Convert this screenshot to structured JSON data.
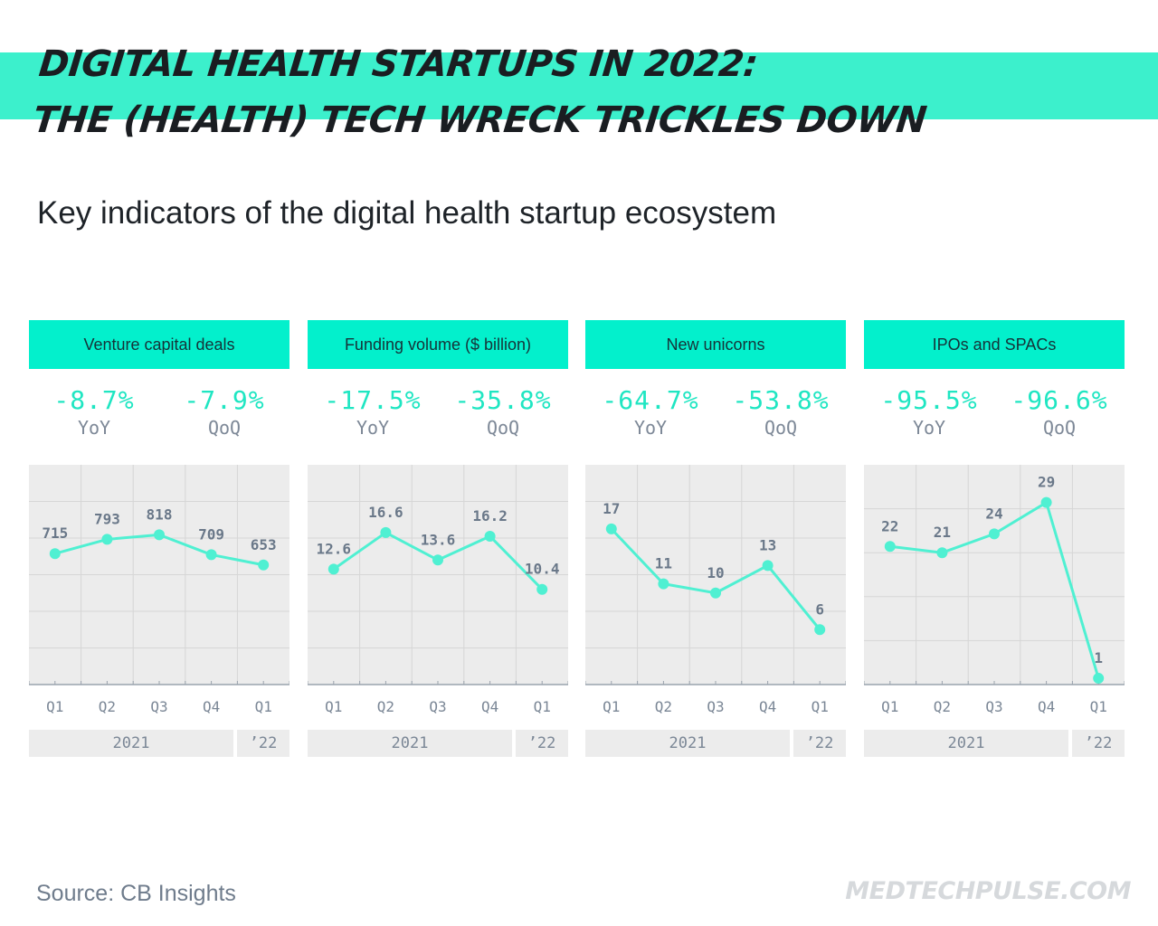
{
  "header": {
    "title_line1": "DIGITAL HEALTH STARTUPS IN 2022:",
    "title_line2": "THE (HEALTH) TECH WRECK TRICKLES DOWN",
    "subtitle": "Key indicators of the digital health startup ecosystem",
    "accent_color": "#3cf0cc"
  },
  "footer": {
    "source": "Source: CB Insights",
    "brand": "MEDTECHPULSE.COM"
  },
  "panels": [
    {
      "title": "Venture capital deals",
      "yoy_value": "-8.7%",
      "yoy_label": "YoY",
      "qoq_value": "-7.9%",
      "qoq_label": "QoQ",
      "year_label": "2021",
      "year2_label": "’22"
    },
    {
      "title": "Funding volume ($ billion)",
      "yoy_value": "-17.5%",
      "yoy_label": "YoY",
      "qoq_value": "-35.8%",
      "qoq_label": "QoQ",
      "year_label": "2021",
      "year2_label": "’22"
    },
    {
      "title": "New unicorns",
      "yoy_value": "-64.7%",
      "yoy_label": "YoY",
      "qoq_value": "-53.8%",
      "qoq_label": "QoQ",
      "year_label": "2021",
      "year2_label": "’22"
    },
    {
      "title": "IPOs and SPACs",
      "yoy_value": "-95.5%",
      "yoy_label": "YoY",
      "qoq_value": "-96.6%",
      "qoq_label": "QoQ",
      "year_label": "2021",
      "year2_label": "’22"
    }
  ],
  "chart_data": [
    {
      "type": "line",
      "title": "Venture capital deals",
      "categories": [
        "Q1",
        "Q2",
        "Q3",
        "Q4",
        "Q1"
      ],
      "category_groups": [
        "2021",
        "2021",
        "2021",
        "2021",
        "’22"
      ],
      "values": [
        715,
        793,
        818,
        709,
        653
      ],
      "labels": [
        "715",
        "793",
        "818",
        "709",
        "653"
      ],
      "ylim": [
        0,
        1200
      ],
      "gridlines": [
        200,
        400,
        600,
        800,
        1000
      ],
      "grid": true,
      "line_color": "#4ff0d2"
    },
    {
      "type": "line",
      "title": "Funding volume ($ billion)",
      "categories": [
        "Q1",
        "Q2",
        "Q3",
        "Q4",
        "Q1"
      ],
      "category_groups": [
        "2021",
        "2021",
        "2021",
        "2021",
        "’22"
      ],
      "values": [
        12.6,
        16.6,
        13.6,
        16.2,
        10.4
      ],
      "labels": [
        "12.6",
        "16.6",
        "13.6",
        "16.2",
        "10.4"
      ],
      "ylim": [
        0,
        24
      ],
      "gridlines": [
        4,
        8,
        12,
        16,
        20
      ],
      "grid": true,
      "line_color": "#4ff0d2"
    },
    {
      "type": "line",
      "title": "New unicorns",
      "categories": [
        "Q1",
        "Q2",
        "Q3",
        "Q4",
        "Q1"
      ],
      "category_groups": [
        "2021",
        "2021",
        "2021",
        "2021",
        "’22"
      ],
      "values": [
        17,
        11,
        10,
        13,
        6
      ],
      "labels": [
        "17",
        "11",
        "10",
        "13",
        "6"
      ],
      "ylim": [
        0,
        24
      ],
      "gridlines": [
        4,
        8,
        12,
        16,
        20
      ],
      "grid": true,
      "line_color": "#4ff0d2"
    },
    {
      "type": "line",
      "title": "IPOs and SPACs",
      "categories": [
        "Q1",
        "Q2",
        "Q3",
        "Q4",
        "Q1"
      ],
      "category_groups": [
        "2021",
        "2021",
        "2021",
        "2021",
        "’22"
      ],
      "values": [
        22,
        21,
        24,
        29,
        1
      ],
      "labels": [
        "22",
        "21",
        "24",
        "29",
        "1"
      ],
      "ylim": [
        0,
        35
      ],
      "gridlines": [
        7,
        14,
        21,
        28
      ],
      "grid": true,
      "line_color": "#4ff0d2"
    }
  ]
}
